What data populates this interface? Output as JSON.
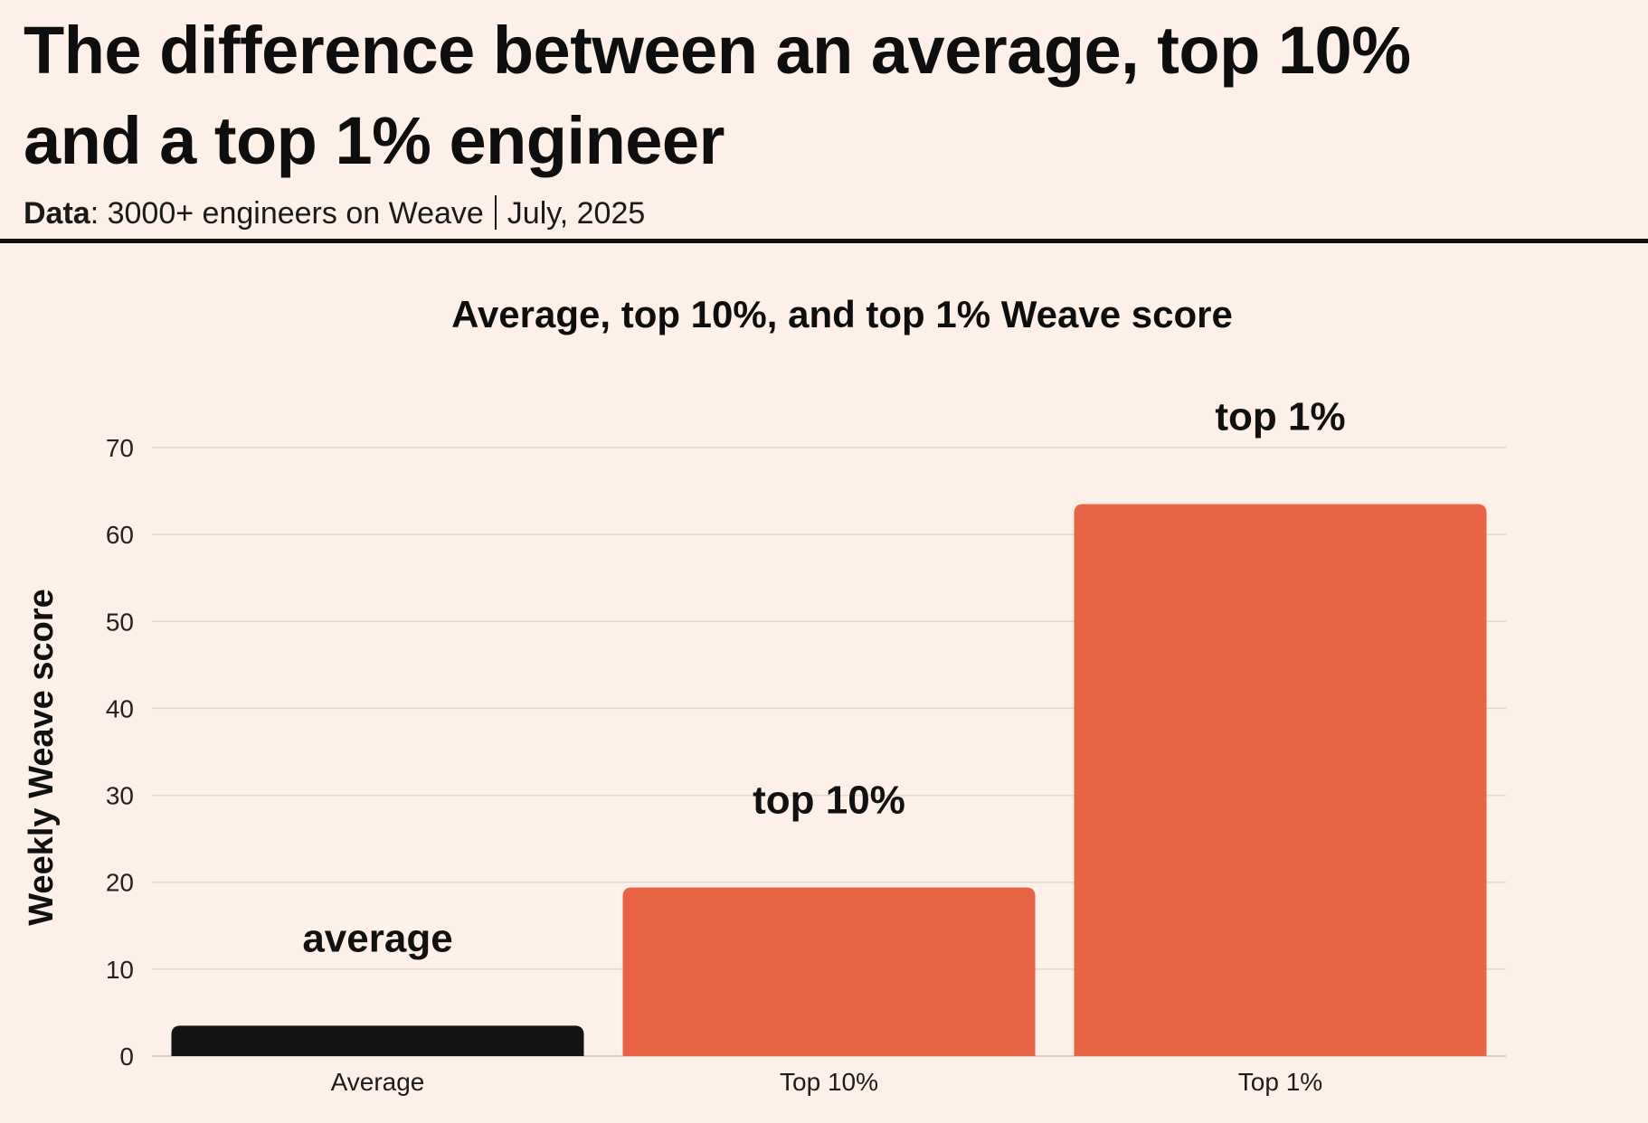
{
  "header": {
    "headline_line1": "The difference between an average, top 10%",
    "headline_line2": "and a top 1% engineer",
    "source_key": "Data",
    "source_text": "3000+ engineers on Weave",
    "source_date": "July, 2025"
  },
  "chart_data": {
    "type": "bar",
    "title": "Average, top 10%, and top 1% Weave score",
    "xlabel": "",
    "ylabel": "Weekly Weave score",
    "categories": [
      "Average",
      "Top 10%",
      "Top 1%"
    ],
    "values": [
      3.5,
      19.4,
      63.5
    ],
    "annotations": [
      "average",
      "top 10%",
      "top 1%"
    ],
    "ylim": [
      0,
      70
    ],
    "yticks": [
      0,
      10,
      20,
      30,
      40,
      50,
      60,
      70
    ],
    "grid": true,
    "legend": "none",
    "colors": {
      "average_bar": "#141414",
      "highlight_bar": "#e96444",
      "grid": "#e3d6cd",
      "background": "#fdf0e8"
    }
  }
}
